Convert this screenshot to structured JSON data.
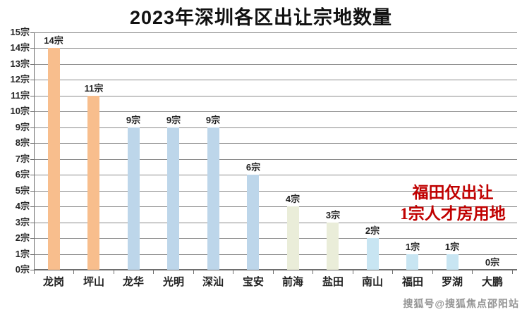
{
  "title": "2023年深圳各区出让宗地数量",
  "annotation": {
    "line1": "福田仅出让",
    "line2": "1宗人才房用地",
    "color": "#C00000"
  },
  "watermark": "搜狐号@搜狐焦点邵阳站",
  "colors": {
    "orange": "#F8BE8D",
    "blue": "#BDD6EA",
    "pale_green": "#EAEDD9",
    "cyan": "#C8E5F2",
    "gridline": "#8a8a8a",
    "axis": "#6e6e6e",
    "label": "#1f1f1f",
    "annotation_red": "#C00000"
  },
  "chart_data": {
    "type": "bar",
    "title": "2023年深圳各区出让宗地数量",
    "categories": [
      "龙岗",
      "坪山",
      "龙华",
      "光明",
      "深汕",
      "宝安",
      "前海",
      "盐田",
      "南山",
      "福田",
      "罗湖",
      "大鹏"
    ],
    "values": [
      14,
      11,
      9,
      9,
      9,
      6,
      4,
      3,
      2,
      1,
      1,
      0
    ],
    "data_labels": [
      "14宗",
      "11宗",
      "9宗",
      "9宗",
      "9宗",
      "6宗",
      "4宗",
      "3宗",
      "2宗",
      "1宗",
      "1宗",
      "0宗"
    ],
    "bar_colors": [
      "orange",
      "orange",
      "blue",
      "blue",
      "blue",
      "blue",
      "pale_green",
      "pale_green",
      "cyan",
      "cyan",
      "cyan",
      "cyan"
    ],
    "xlabel": "",
    "ylabel": "",
    "ylim": [
      0,
      15
    ],
    "ytick_step": 1,
    "yticks": [
      "0宗",
      "1宗",
      "2宗",
      "3宗",
      "4宗",
      "5宗",
      "6宗",
      "7宗",
      "8宗",
      "9宗",
      "10宗",
      "11宗",
      "12宗",
      "13宗",
      "14宗",
      "15宗"
    ],
    "grid": true,
    "legend": false,
    "annotations": [
      "福田仅出让",
      "1宗人才房用地"
    ]
  }
}
